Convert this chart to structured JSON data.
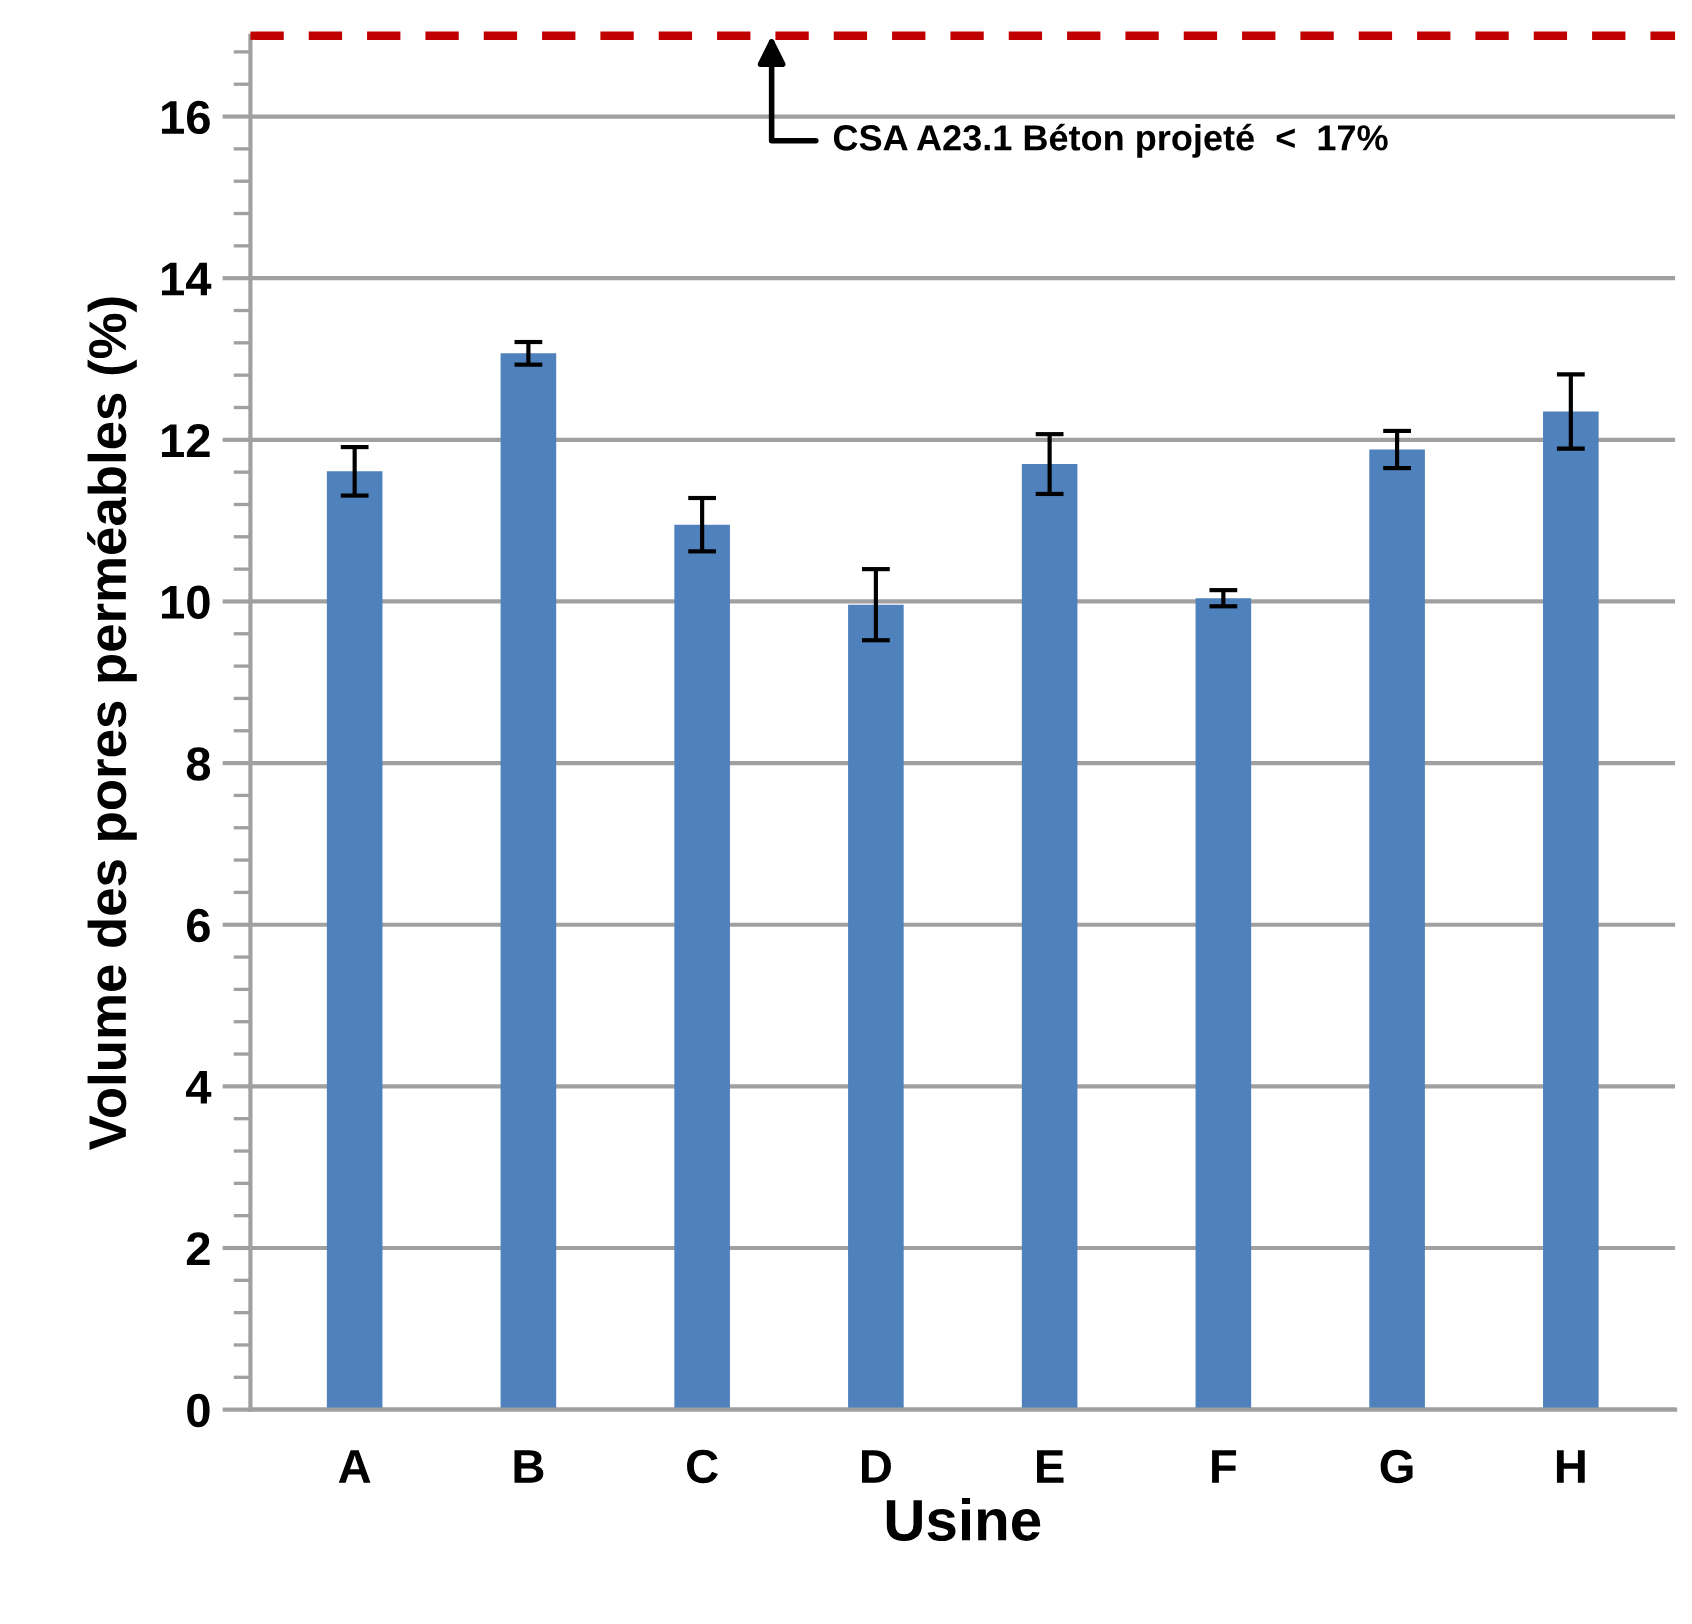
{
  "chart_data": {
    "type": "bar",
    "xlabel": "Usine",
    "ylabel": "Volume des pores perméables (%)",
    "categories": [
      "A",
      "B",
      "C",
      "D",
      "E",
      "F",
      "G",
      "H"
    ],
    "series": [
      {
        "color": "#4f81bd",
        "values": [
          11.61,
          13.07,
          10.95,
          9.96,
          11.7,
          10.04,
          11.88,
          12.35
        ],
        "errors": [
          0.3,
          0.14,
          0.33,
          0.44,
          0.37,
          0.1,
          0.23,
          0.46
        ]
      }
    ],
    "ylim": [
      0,
      17
    ],
    "yticks": [
      0,
      2,
      4,
      6,
      8,
      10,
      12,
      14,
      16
    ],
    "grid": "y",
    "legend": false,
    "ref_lines": [
      {
        "axis": "y",
        "value": 17,
        "label": "CSA A23.1 Béton projeté  <  17%",
        "color": "#c00000",
        "line_style": "dashed"
      }
    ]
  }
}
